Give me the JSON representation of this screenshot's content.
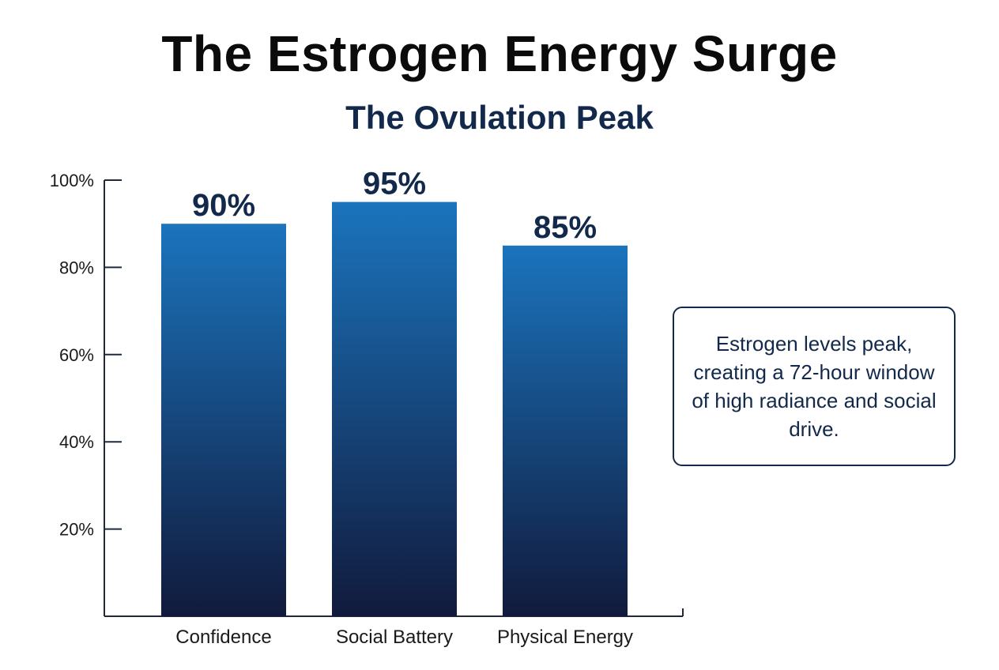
{
  "chart_data": {
    "type": "bar",
    "title": "The Estrogen Energy Surge",
    "subtitle": "The Ovulation Peak",
    "categories": [
      "Confidence",
      "Social Battery",
      "Physical Energy"
    ],
    "values": [
      90,
      95,
      85
    ],
    "data_labels": [
      "90%",
      "95%",
      "85%"
    ],
    "ylim": [
      0,
      100
    ],
    "yticks": [
      20,
      40,
      60,
      80,
      100
    ],
    "ytick_labels": [
      "20%",
      "40%",
      "60%",
      "80%",
      "100%"
    ],
    "xlabel": "",
    "ylabel": "",
    "grid": false,
    "bar_gradient": {
      "top": "#1b74bd",
      "bottom": "#111a3c"
    },
    "annotation": "Estrogen levels peak, creating a 72-hour window of high radiance and social drive."
  }
}
